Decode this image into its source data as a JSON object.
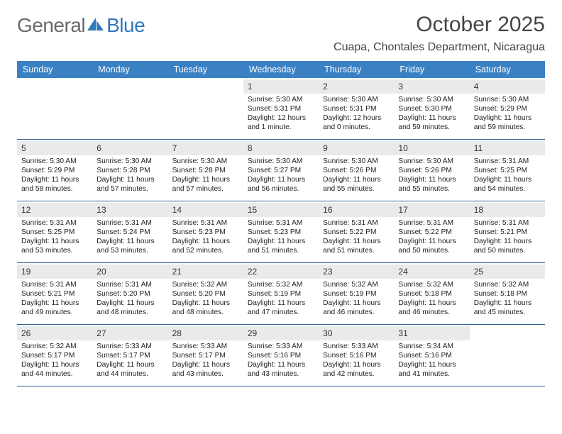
{
  "logo": {
    "word1": "General",
    "word2": "Blue"
  },
  "title": "October 2025",
  "location": "Cuapa, Chontales Department, Nicaragua",
  "colors": {
    "header_bg": "#3a81c4",
    "header_text": "#ffffff",
    "daynum_bg": "#e9eaeb",
    "row_border": "#2b5f93",
    "logo_gray": "#6a6a6a",
    "logo_blue": "#2f78bd",
    "text": "#333333"
  },
  "day_names": [
    "Sunday",
    "Monday",
    "Tuesday",
    "Wednesday",
    "Thursday",
    "Friday",
    "Saturday"
  ],
  "weeks": [
    [
      {
        "empty": true
      },
      {
        "empty": true
      },
      {
        "empty": true
      },
      {
        "n": "1",
        "sr": "5:30 AM",
        "ss": "5:31 PM",
        "dl": "12 hours and 1 minute."
      },
      {
        "n": "2",
        "sr": "5:30 AM",
        "ss": "5:31 PM",
        "dl": "12 hours and 0 minutes."
      },
      {
        "n": "3",
        "sr": "5:30 AM",
        "ss": "5:30 PM",
        "dl": "11 hours and 59 minutes."
      },
      {
        "n": "4",
        "sr": "5:30 AM",
        "ss": "5:29 PM",
        "dl": "11 hours and 59 minutes."
      }
    ],
    [
      {
        "n": "5",
        "sr": "5:30 AM",
        "ss": "5:29 PM",
        "dl": "11 hours and 58 minutes."
      },
      {
        "n": "6",
        "sr": "5:30 AM",
        "ss": "5:28 PM",
        "dl": "11 hours and 57 minutes."
      },
      {
        "n": "7",
        "sr": "5:30 AM",
        "ss": "5:28 PM",
        "dl": "11 hours and 57 minutes."
      },
      {
        "n": "8",
        "sr": "5:30 AM",
        "ss": "5:27 PM",
        "dl": "11 hours and 56 minutes."
      },
      {
        "n": "9",
        "sr": "5:30 AM",
        "ss": "5:26 PM",
        "dl": "11 hours and 55 minutes."
      },
      {
        "n": "10",
        "sr": "5:30 AM",
        "ss": "5:26 PM",
        "dl": "11 hours and 55 minutes."
      },
      {
        "n": "11",
        "sr": "5:31 AM",
        "ss": "5:25 PM",
        "dl": "11 hours and 54 minutes."
      }
    ],
    [
      {
        "n": "12",
        "sr": "5:31 AM",
        "ss": "5:25 PM",
        "dl": "11 hours and 53 minutes."
      },
      {
        "n": "13",
        "sr": "5:31 AM",
        "ss": "5:24 PM",
        "dl": "11 hours and 53 minutes."
      },
      {
        "n": "14",
        "sr": "5:31 AM",
        "ss": "5:23 PM",
        "dl": "11 hours and 52 minutes."
      },
      {
        "n": "15",
        "sr": "5:31 AM",
        "ss": "5:23 PM",
        "dl": "11 hours and 51 minutes."
      },
      {
        "n": "16",
        "sr": "5:31 AM",
        "ss": "5:22 PM",
        "dl": "11 hours and 51 minutes."
      },
      {
        "n": "17",
        "sr": "5:31 AM",
        "ss": "5:22 PM",
        "dl": "11 hours and 50 minutes."
      },
      {
        "n": "18",
        "sr": "5:31 AM",
        "ss": "5:21 PM",
        "dl": "11 hours and 50 minutes."
      }
    ],
    [
      {
        "n": "19",
        "sr": "5:31 AM",
        "ss": "5:21 PM",
        "dl": "11 hours and 49 minutes."
      },
      {
        "n": "20",
        "sr": "5:31 AM",
        "ss": "5:20 PM",
        "dl": "11 hours and 48 minutes."
      },
      {
        "n": "21",
        "sr": "5:32 AM",
        "ss": "5:20 PM",
        "dl": "11 hours and 48 minutes."
      },
      {
        "n": "22",
        "sr": "5:32 AM",
        "ss": "5:19 PM",
        "dl": "11 hours and 47 minutes."
      },
      {
        "n": "23",
        "sr": "5:32 AM",
        "ss": "5:19 PM",
        "dl": "11 hours and 46 minutes."
      },
      {
        "n": "24",
        "sr": "5:32 AM",
        "ss": "5:18 PM",
        "dl": "11 hours and 46 minutes."
      },
      {
        "n": "25",
        "sr": "5:32 AM",
        "ss": "5:18 PM",
        "dl": "11 hours and 45 minutes."
      }
    ],
    [
      {
        "n": "26",
        "sr": "5:32 AM",
        "ss": "5:17 PM",
        "dl": "11 hours and 44 minutes."
      },
      {
        "n": "27",
        "sr": "5:33 AM",
        "ss": "5:17 PM",
        "dl": "11 hours and 44 minutes."
      },
      {
        "n": "28",
        "sr": "5:33 AM",
        "ss": "5:17 PM",
        "dl": "11 hours and 43 minutes."
      },
      {
        "n": "29",
        "sr": "5:33 AM",
        "ss": "5:16 PM",
        "dl": "11 hours and 43 minutes."
      },
      {
        "n": "30",
        "sr": "5:33 AM",
        "ss": "5:16 PM",
        "dl": "11 hours and 42 minutes."
      },
      {
        "n": "31",
        "sr": "5:34 AM",
        "ss": "5:16 PM",
        "dl": "11 hours and 41 minutes."
      },
      {
        "empty": true
      }
    ]
  ],
  "labels": {
    "sunrise": "Sunrise: ",
    "sunset": "Sunset: ",
    "daylight": "Daylight: "
  }
}
